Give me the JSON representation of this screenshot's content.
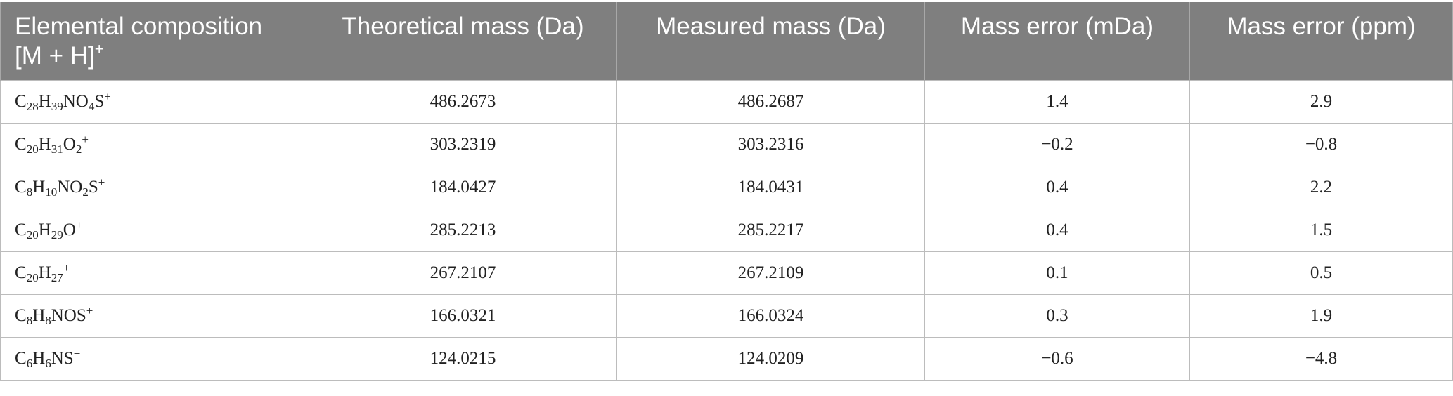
{
  "table": {
    "headers": [
      {
        "text": "Elemental composition [M + H]",
        "sup": "+"
      },
      {
        "text": "Theoretical mass (Da)"
      },
      {
        "text": "Measured mass (Da)"
      },
      {
        "text": "Mass error (mDa)"
      },
      {
        "text": "Mass error (ppm)"
      }
    ],
    "rows": [
      {
        "formula": [
          {
            "t": "C"
          },
          {
            "sub": "28"
          },
          {
            "t": "H"
          },
          {
            "sub": "39"
          },
          {
            "t": "NO"
          },
          {
            "sub": "4"
          },
          {
            "t": "S"
          },
          {
            "sup": "+"
          }
        ],
        "theoretical": "486.2673",
        "measured": "486.2687",
        "error_mda": "1.4",
        "error_ppm": "2.9"
      },
      {
        "formula": [
          {
            "t": "C"
          },
          {
            "sub": "20"
          },
          {
            "t": "H"
          },
          {
            "sub": "31"
          },
          {
            "t": "O"
          },
          {
            "sub": "2"
          },
          {
            "sup": "+"
          }
        ],
        "theoretical": "303.2319",
        "measured": "303.2316",
        "error_mda": "−0.2",
        "error_ppm": "−0.8"
      },
      {
        "formula": [
          {
            "t": "C"
          },
          {
            "sub": "8"
          },
          {
            "t": "H"
          },
          {
            "sub": "10"
          },
          {
            "t": "NO"
          },
          {
            "sub": "2"
          },
          {
            "t": "S"
          },
          {
            "sup": "+"
          }
        ],
        "theoretical": "184.0427",
        "measured": "184.0431",
        "error_mda": "0.4",
        "error_ppm": "2.2"
      },
      {
        "formula": [
          {
            "t": "C"
          },
          {
            "sub": "20"
          },
          {
            "t": "H"
          },
          {
            "sub": "29"
          },
          {
            "t": "O"
          },
          {
            "sup": "+"
          }
        ],
        "theoretical": "285.2213",
        "measured": "285.2217",
        "error_mda": "0.4",
        "error_ppm": "1.5"
      },
      {
        "formula": [
          {
            "t": "C"
          },
          {
            "sub": "20"
          },
          {
            "t": "H"
          },
          {
            "sub": "27"
          },
          {
            "sup": "+"
          }
        ],
        "theoretical": "267.2107",
        "measured": "267.2109",
        "error_mda": "0.1",
        "error_ppm": "0.5"
      },
      {
        "formula": [
          {
            "t": "C"
          },
          {
            "sub": "8"
          },
          {
            "t": "H"
          },
          {
            "sub": "8"
          },
          {
            "t": "NOS"
          },
          {
            "sup": "+"
          }
        ],
        "theoretical": "166.0321",
        "measured": "166.0324",
        "error_mda": "0.3",
        "error_ppm": "1.9"
      },
      {
        "formula": [
          {
            "t": "C"
          },
          {
            "sub": "6"
          },
          {
            "t": "H"
          },
          {
            "sub": "6"
          },
          {
            "t": "NS"
          },
          {
            "sup": "+"
          }
        ],
        "theoretical": "124.0215",
        "measured": "124.0209",
        "error_mda": "−0.6",
        "error_ppm": "−4.8"
      }
    ]
  },
  "colors": {
    "header_bg": "#7f7f7f",
    "header_text": "#ffffff",
    "grid_line": "#bcbcbc"
  }
}
